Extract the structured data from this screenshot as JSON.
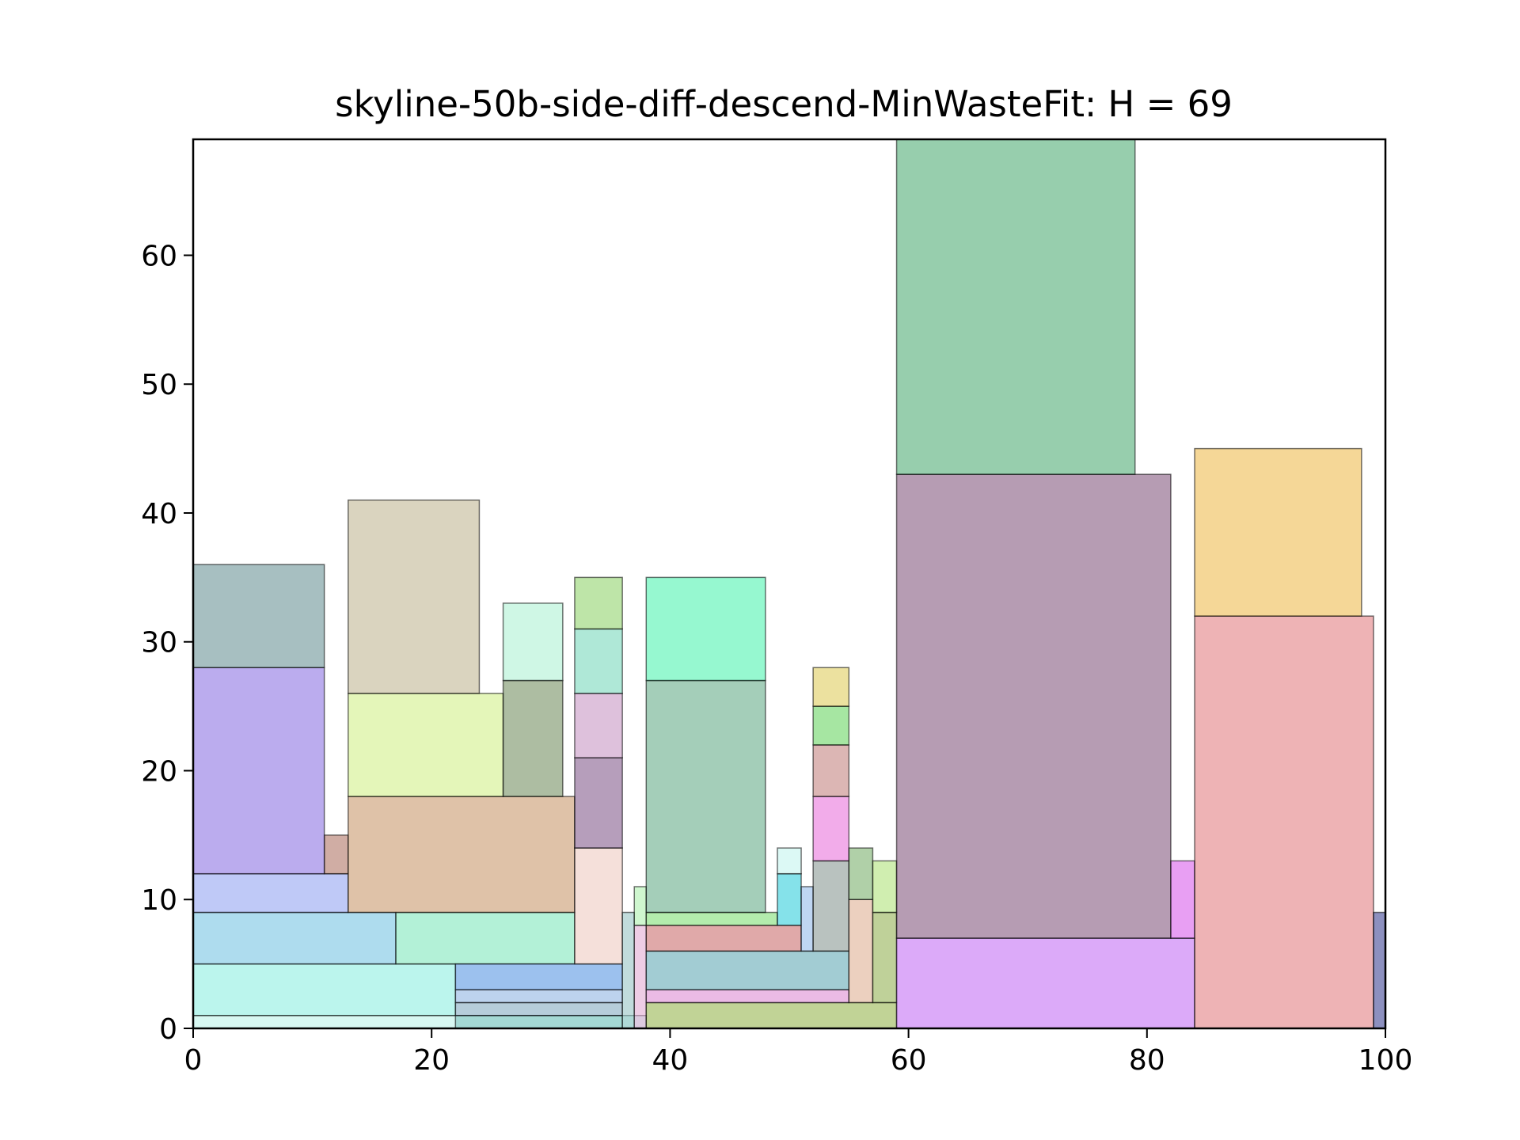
{
  "chart_data": {
    "type": "rect-packing",
    "title": "skyline-50b-side-diff-descend-MinWasteFit: H = 69",
    "xlabel": "",
    "ylabel": "",
    "xlim": [
      0,
      100
    ],
    "ylim": [
      0,
      69
    ],
    "xticks": [
      0,
      20,
      40,
      60,
      80,
      100
    ],
    "yticks": [
      0,
      10,
      20,
      30,
      40,
      50,
      60
    ],
    "grid": false,
    "legend": "none",
    "rectangles": [
      {
        "x": 0,
        "y": 0,
        "w": 38,
        "h": 1,
        "color": "#b8f2e8"
      },
      {
        "x": 0,
        "y": 1,
        "w": 22,
        "h": 4,
        "color": "#83ecdf"
      },
      {
        "x": 0,
        "y": 5,
        "w": 17,
        "h": 4,
        "color": "#6cc0e0"
      },
      {
        "x": 17,
        "y": 5,
        "w": 15,
        "h": 4,
        "color": "#74e6b6"
      },
      {
        "x": 0,
        "y": 9,
        "w": 13,
        "h": 3,
        "color": "#8a9df0"
      },
      {
        "x": 11,
        "y": 12,
        "w": 2,
        "h": 3,
        "color": "#aa6a5a"
      },
      {
        "x": 0,
        "y": 12,
        "w": 11,
        "h": 16,
        "color": "#8467e0"
      },
      {
        "x": 0,
        "y": 28,
        "w": 11,
        "h": 8,
        "color": "#5e8a8e"
      },
      {
        "x": 13,
        "y": 9,
        "w": 19,
        "h": 9,
        "color": "#c49060"
      },
      {
        "x": 13,
        "y": 18,
        "w": 13,
        "h": 8,
        "color": "#cdee80"
      },
      {
        "x": 13,
        "y": 26,
        "w": 11,
        "h": 15,
        "color": "#bcb08a"
      },
      {
        "x": 26,
        "y": 18,
        "w": 5,
        "h": 9,
        "color": "#6a8656"
      },
      {
        "x": 26,
        "y": 27,
        "w": 5,
        "h": 6,
        "color": "#a8f0d0"
      },
      {
        "x": 22,
        "y": 0,
        "w": 14,
        "h": 1,
        "color": "#7ac0bc"
      },
      {
        "x": 22,
        "y": 1,
        "w": 14,
        "h": 1,
        "color": "#7aa4bc"
      },
      {
        "x": 22,
        "y": 2,
        "w": 14,
        "h": 1,
        "color": "#86aee0"
      },
      {
        "x": 22,
        "y": 3,
        "w": 14,
        "h": 2,
        "color": "#4a8ee0"
      },
      {
        "x": 32,
        "y": 5,
        "w": 4,
        "h": 9,
        "color": "#ecc6bc"
      },
      {
        "x": 32,
        "y": 14,
        "w": 4,
        "h": 7,
        "color": "#7a4e84"
      },
      {
        "x": 32,
        "y": 21,
        "w": 4,
        "h": 5,
        "color": "#c28ec0"
      },
      {
        "x": 32,
        "y": 26,
        "w": 4,
        "h": 5,
        "color": "#6ed6b6"
      },
      {
        "x": 32,
        "y": 31,
        "w": 4,
        "h": 4,
        "color": "#88d060"
      },
      {
        "x": 36,
        "y": 0,
        "w": 1,
        "h": 9,
        "color": "#8ec0c0"
      },
      {
        "x": 37,
        "y": 0,
        "w": 1,
        "h": 8,
        "color": "#e0a4d0"
      },
      {
        "x": 37,
        "y": 8,
        "w": 1,
        "h": 3,
        "color": "#a8f0a8"
      },
      {
        "x": 38,
        "y": 0,
        "w": 21,
        "h": 2,
        "color": "#8eae40"
      },
      {
        "x": 38,
        "y": 2,
        "w": 17,
        "h": 1,
        "color": "#da84d0"
      },
      {
        "x": 38,
        "y": 3,
        "w": 17,
        "h": 3,
        "color": "#56a2ae"
      },
      {
        "x": 38,
        "y": 6,
        "w": 13,
        "h": 2,
        "color": "#c66262"
      },
      {
        "x": 38,
        "y": 8,
        "w": 11,
        "h": 1,
        "color": "#74dc6a"
      },
      {
        "x": 38,
        "y": 9,
        "w": 10,
        "h": 18,
        "color": "#5aa680"
      },
      {
        "x": 38,
        "y": 27,
        "w": 10,
        "h": 8,
        "color": "#40f2aa"
      },
      {
        "x": 49,
        "y": 8,
        "w": 2,
        "h": 4,
        "color": "#20cad8"
      },
      {
        "x": 49,
        "y": 12,
        "w": 2,
        "h": 2,
        "color": "#c0f4ec"
      },
      {
        "x": 51,
        "y": 6,
        "w": 1,
        "h": 5,
        "color": "#8ab4e8"
      },
      {
        "x": 52,
        "y": 6,
        "w": 3,
        "h": 7,
        "color": "#80908a"
      },
      {
        "x": 52,
        "y": 13,
        "w": 3,
        "h": 5,
        "color": "#e868d8"
      },
      {
        "x": 52,
        "y": 18,
        "w": 3,
        "h": 4,
        "color": "#c07a76"
      },
      {
        "x": 52,
        "y": 22,
        "w": 3,
        "h": 3,
        "color": "#5cd256"
      },
      {
        "x": 52,
        "y": 25,
        "w": 3,
        "h": 3,
        "color": "#dcc850"
      },
      {
        "x": 55,
        "y": 2,
        "w": 2,
        "h": 8,
        "color": "#dcaa8a"
      },
      {
        "x": 55,
        "y": 10,
        "w": 2,
        "h": 4,
        "color": "#70aa60"
      },
      {
        "x": 57,
        "y": 2,
        "w": 2,
        "h": 7,
        "color": "#8aac46"
      },
      {
        "x": 57,
        "y": 9,
        "w": 2,
        "h": 4,
        "color": "#aae070"
      },
      {
        "x": 59,
        "y": 0,
        "w": 25,
        "h": 7,
        "color": "#c064f4"
      },
      {
        "x": 59,
        "y": 7,
        "w": 23,
        "h": 36,
        "color": "#7a4a74"
      },
      {
        "x": 59,
        "y": 43,
        "w": 20,
        "h": 26,
        "color": "#42a66a"
      },
      {
        "x": 82,
        "y": 7,
        "w": 2,
        "h": 6,
        "color": "#d650ea"
      },
      {
        "x": 84,
        "y": 0,
        "w": 15,
        "h": 32,
        "color": "#e07478"
      },
      {
        "x": 84,
        "y": 32,
        "w": 14,
        "h": 13,
        "color": "#ecb642"
      },
      {
        "x": 99,
        "y": 0,
        "w": 1,
        "h": 9,
        "color": "#30348a"
      }
    ]
  }
}
